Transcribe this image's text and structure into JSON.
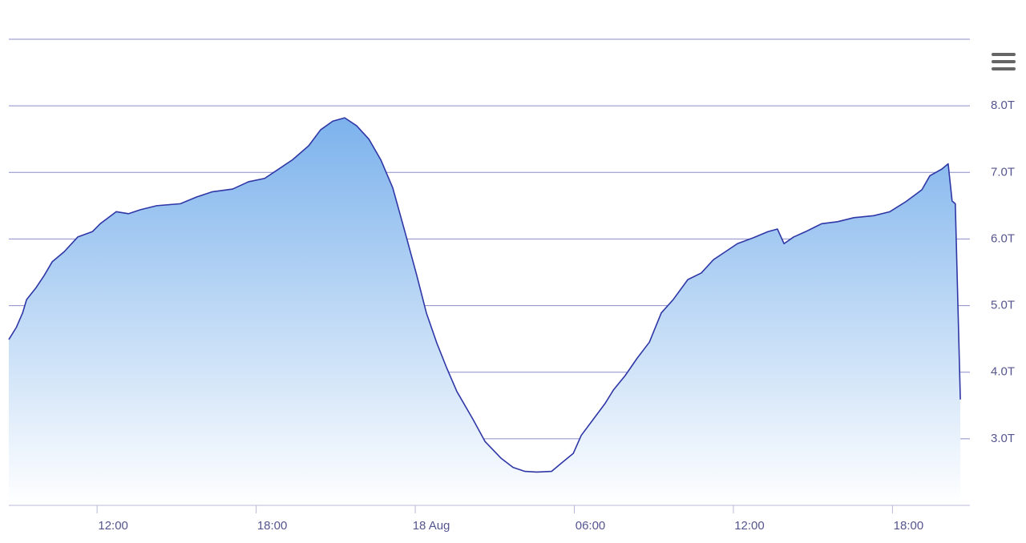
{
  "chart_data": {
    "type": "area",
    "color": "#2f37a6",
    "fill_color": "#7cb2ec",
    "grid": true,
    "xlim": [
      -15.33,
      20.92
    ],
    "ylim": [
      2,
      9
    ],
    "xticks": [
      {
        "value": -12,
        "label": "12:00"
      },
      {
        "value": -6,
        "label": "18:00"
      },
      {
        "value": 0,
        "label": "18 Aug"
      },
      {
        "value": 6,
        "label": "06:00"
      },
      {
        "value": 12,
        "label": "12:00"
      },
      {
        "value": 18,
        "label": "18:00"
      }
    ],
    "yticks": [
      {
        "value": 3,
        "label": "3.0T"
      },
      {
        "value": 4,
        "label": "4.0T"
      },
      {
        "value": 5,
        "label": "5.0T"
      },
      {
        "value": 6,
        "label": "6.0T"
      },
      {
        "value": 7,
        "label": "7.0T"
      },
      {
        "value": 8,
        "label": "8.0T"
      }
    ],
    "x": [
      -15.33,
      -15.05,
      -14.81,
      -14.66,
      -14.3,
      -14.0,
      -13.69,
      -13.24,
      -12.73,
      -12.18,
      -11.88,
      -11.28,
      -10.82,
      -10.37,
      -9.76,
      -8.86,
      -8.25,
      -7.65,
      -6.89,
      -6.29,
      -5.68,
      -5.23,
      -4.63,
      -4.02,
      -3.57,
      -3.11,
      -2.66,
      -2.21,
      -1.75,
      -1.3,
      -0.85,
      -0.39,
      0.06,
      0.42,
      0.82,
      1.18,
      1.57,
      2.18,
      2.63,
      3.23,
      3.69,
      4.14,
      4.59,
      5.14,
      5.5,
      5.96,
      6.26,
      6.71,
      7.16,
      7.47,
      7.92,
      8.37,
      8.83,
      9.28,
      9.73,
      10.28,
      10.79,
      11.25,
      11.7,
      12.15,
      12.76,
      13.3,
      13.66,
      13.91,
      14.27,
      14.72,
      15.33,
      15.93,
      16.54,
      17.29,
      17.9,
      18.5,
      19.11,
      19.41,
      19.86,
      20.1,
      20.25,
      20.37,
      20.56
    ],
    "values": [
      4.49,
      4.67,
      4.89,
      5.09,
      5.27,
      5.45,
      5.66,
      5.81,
      6.03,
      6.11,
      6.23,
      6.41,
      6.38,
      6.44,
      6.5,
      6.53,
      6.63,
      6.71,
      6.75,
      6.86,
      6.91,
      7.03,
      7.19,
      7.4,
      7.64,
      7.77,
      7.82,
      7.7,
      7.5,
      7.19,
      6.77,
      6.11,
      5.45,
      4.89,
      4.43,
      4.07,
      3.71,
      3.29,
      2.96,
      2.71,
      2.57,
      2.51,
      2.5,
      2.51,
      2.63,
      2.78,
      3.05,
      3.29,
      3.53,
      3.73,
      3.95,
      4.21,
      4.45,
      4.89,
      5.09,
      5.39,
      5.49,
      5.69,
      5.81,
      5.93,
      6.02,
      6.11,
      6.15,
      5.93,
      6.03,
      6.11,
      6.23,
      6.26,
      6.32,
      6.35,
      6.41,
      6.56,
      6.74,
      6.95,
      7.05,
      7.13,
      6.57,
      6.53,
      3.59
    ]
  }
}
